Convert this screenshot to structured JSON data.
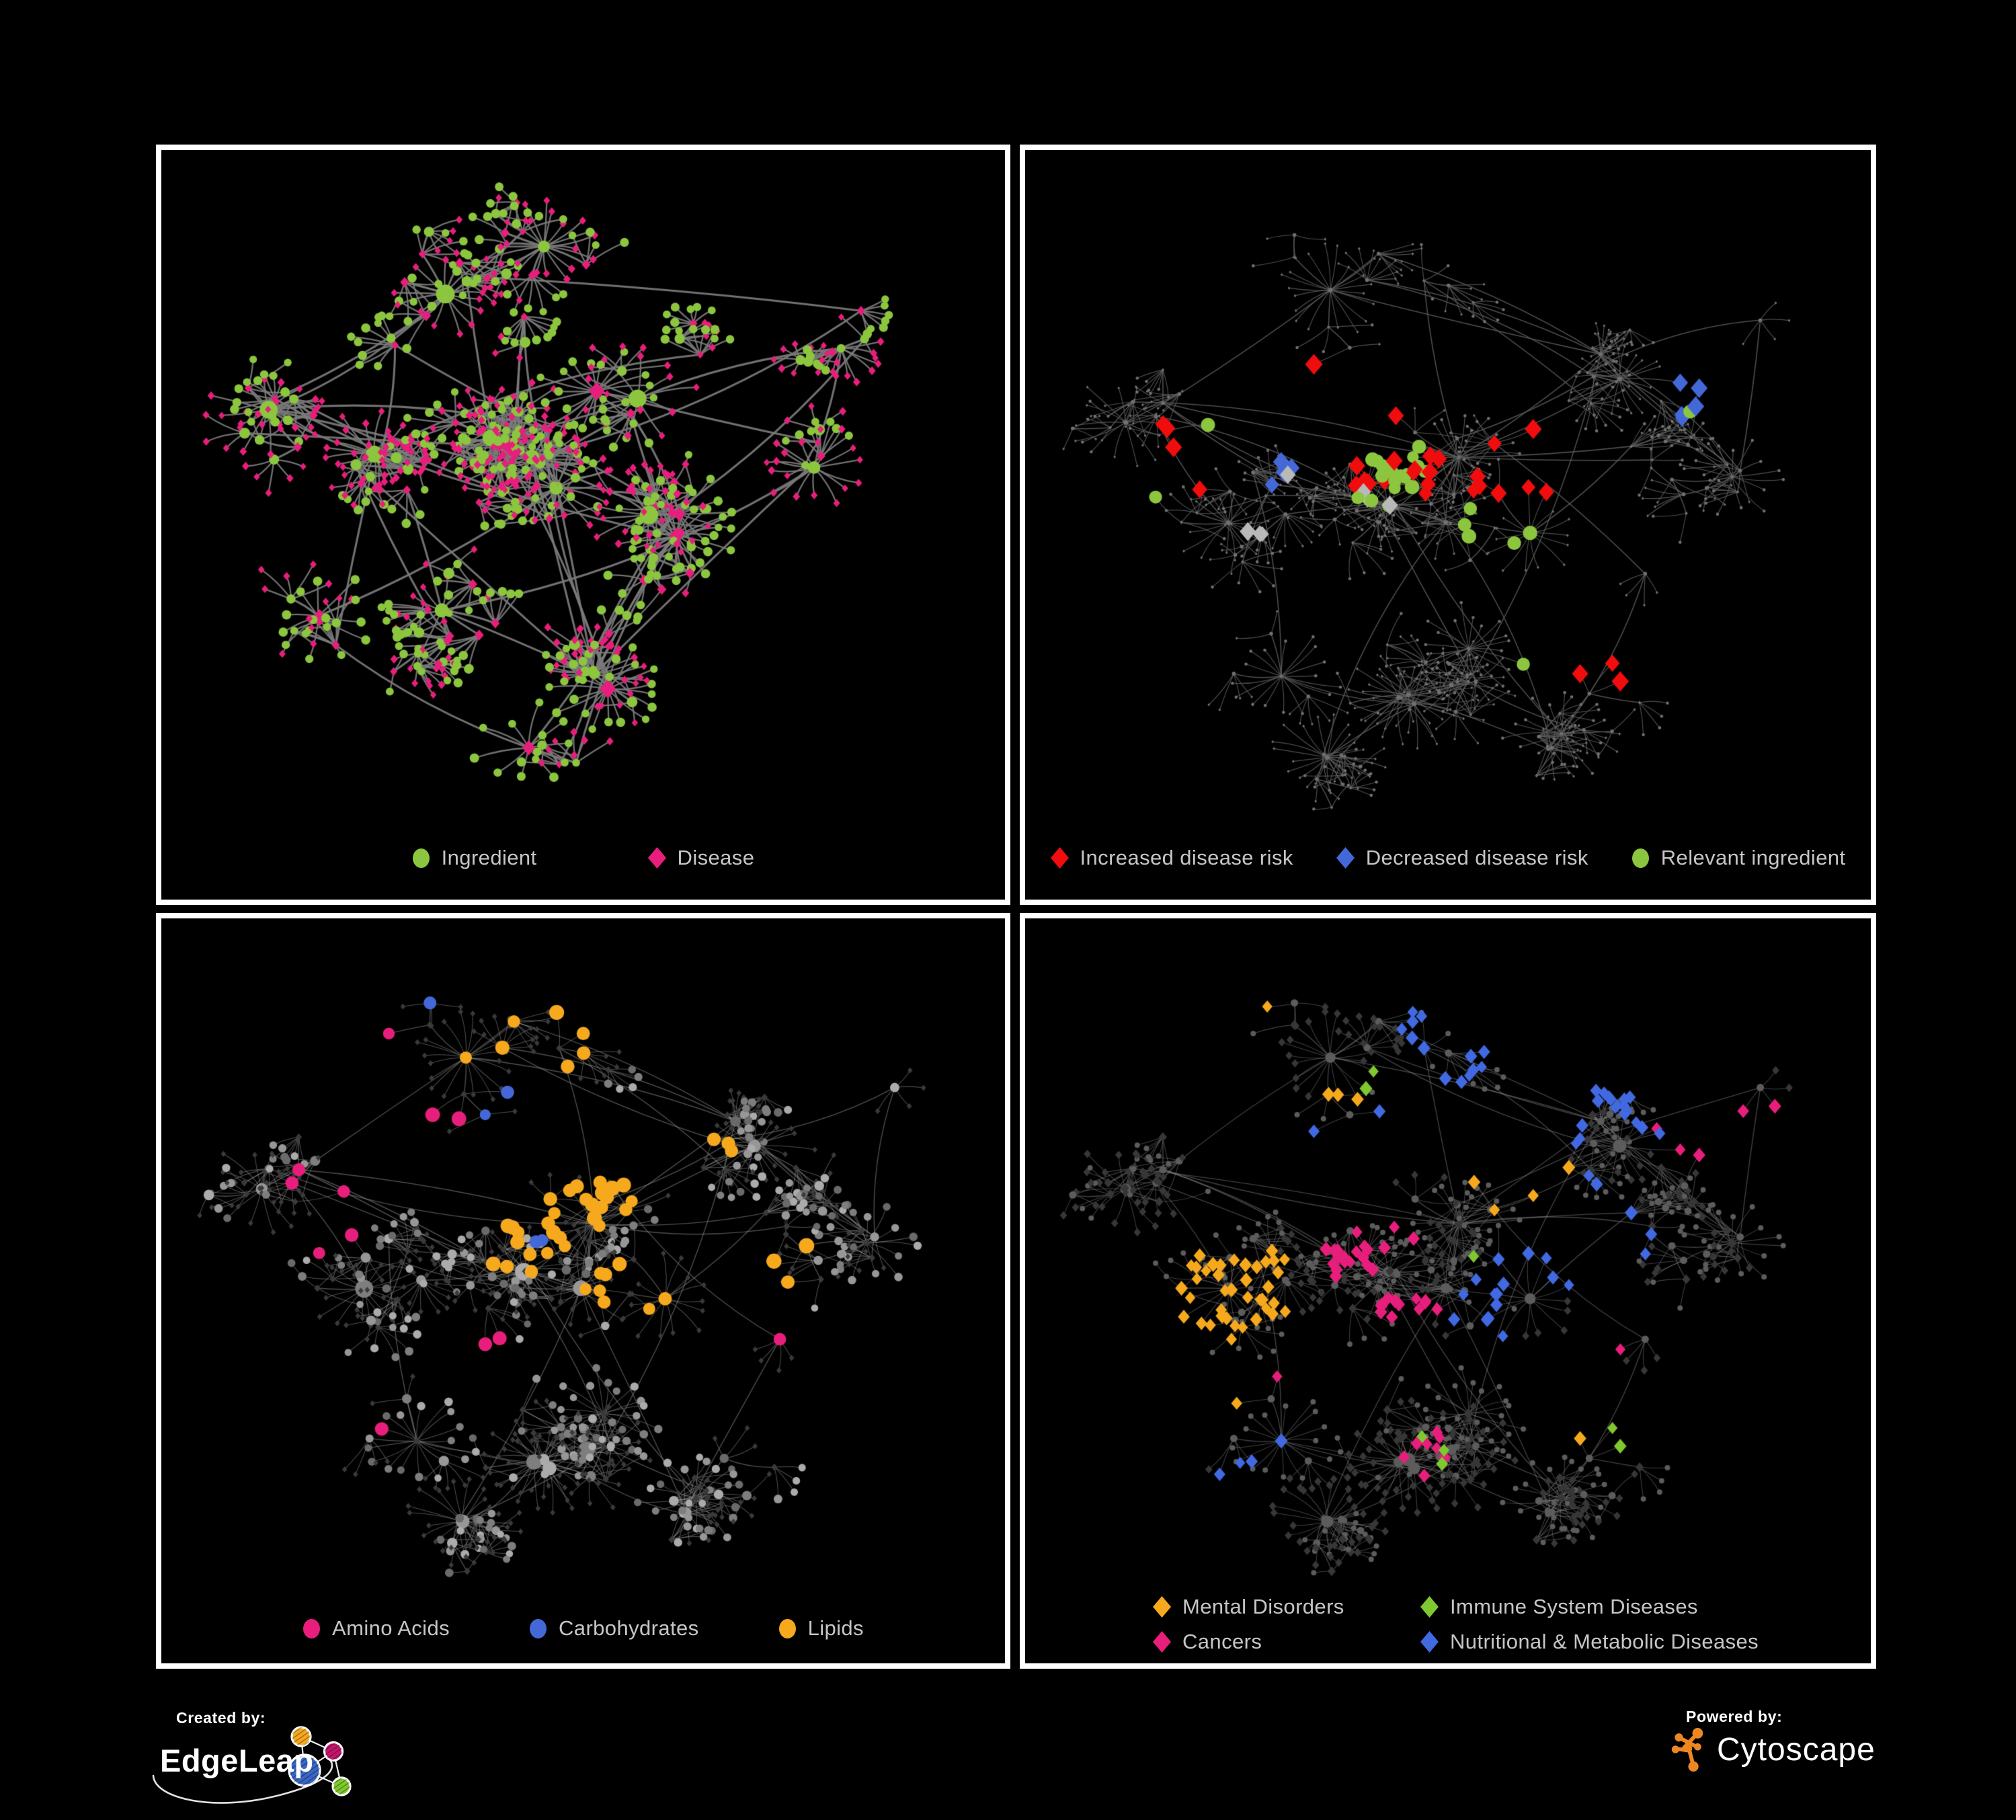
{
  "page": {
    "background": "#000000",
    "panel_border": "#FFFFFF",
    "legend_text_color": "#C6C6C6"
  },
  "panels": [
    {
      "key": "ingredient-disease",
      "legend": {
        "items": [
          {
            "label": "Ingredient",
            "shape": "circle",
            "color": "#8CC63E"
          },
          {
            "label": "Disease",
            "shape": "diamond",
            "color": "#E81E7C"
          }
        ]
      },
      "net": {
        "mode": "full",
        "topoSeed": 7,
        "styleSeed": 11,
        "hubCount": 58,
        "hubIngredientProb": 0.6,
        "clusters": [
          [
            0.42,
            0.46,
            0.09,
            5
          ],
          [
            0.26,
            0.47,
            0.06,
            3
          ],
          [
            0.53,
            0.38,
            0.04,
            2.5
          ],
          [
            0.6,
            0.55,
            0.04,
            1.5
          ],
          [
            0.38,
            0.17,
            0.09,
            2
          ],
          [
            0.22,
            0.25,
            0.07,
            1.5
          ],
          [
            0.65,
            0.28,
            0.09,
            2
          ],
          [
            0.84,
            0.28,
            0.06,
            1.5
          ],
          [
            0.52,
            0.8,
            0.07,
            2
          ],
          [
            0.32,
            0.7,
            0.06,
            1.5
          ],
          [
            0.13,
            0.37,
            0.06,
            1.2
          ],
          [
            0.73,
            0.6,
            0.07,
            1.5
          ],
          [
            0.45,
            0.92,
            0.05,
            1
          ],
          [
            0.18,
            0.72,
            0.05,
            1
          ],
          [
            0.8,
            0.45,
            0.05,
            1
          ]
        ],
        "edge": {
          "color": "#7B7B7B",
          "width": 2.3,
          "alpha": 0.92
        },
        "ingredientColor": "#8CC63E",
        "diseaseColor": "#E81E7C"
      }
    },
    {
      "key": "disease-risk",
      "legend": {
        "items": [
          {
            "label": "Increased disease risk",
            "shape": "diamond",
            "color": "#F10D0D"
          },
          {
            "label": "Decreased disease risk",
            "shape": "diamond",
            "color": "#4468D8"
          },
          {
            "label": "Relevant ingredient",
            "shape": "circle",
            "color": "#8CC63E"
          }
        ]
      },
      "net": {
        "mode": "skeleton",
        "topoSeed": 42,
        "styleSeed": 101,
        "hubCount": 60,
        "hubIngredientProb": 0.62,
        "clusters": [
          [
            0.44,
            0.52,
            0.09,
            5
          ],
          [
            0.27,
            0.52,
            0.06,
            3
          ],
          [
            0.53,
            0.43,
            0.045,
            2.5
          ],
          [
            0.2,
            0.62,
            0.05,
            2
          ],
          [
            0.42,
            0.2,
            0.1,
            2
          ],
          [
            0.66,
            0.33,
            0.1,
            2
          ],
          [
            0.85,
            0.25,
            0.06,
            1.2
          ],
          [
            0.5,
            0.82,
            0.07,
            1.6
          ],
          [
            0.3,
            0.76,
            0.06,
            1.5
          ],
          [
            0.13,
            0.38,
            0.06,
            1.2
          ],
          [
            0.74,
            0.62,
            0.07,
            1.5
          ],
          [
            0.59,
            0.6,
            0.04,
            1.5
          ],
          [
            0.87,
            0.47,
            0.05,
            1
          ],
          [
            0.36,
            0.9,
            0.05,
            1
          ],
          [
            0.64,
            0.88,
            0.05,
            1
          ],
          [
            0.55,
            0.72,
            0.04,
            1.5
          ],
          [
            0.75,
            0.45,
            0.05,
            1.2
          ]
        ],
        "edge": {
          "color": "#5C5C5C",
          "width": 1.15,
          "alpha": 0.85
        },
        "baseColor": "#707070",
        "highlights": [
          {
            "name": "increased-risk",
            "color": "#F10D0D",
            "shape": "diamond",
            "target": "D",
            "size": 13.5,
            "count": 33,
            "zones": [
              [
                0.44,
                0.47,
                0.07,
                5
              ],
              [
                0.22,
                0.43,
                0.04,
                2
              ],
              [
                0.58,
                0.5,
                0.05,
                1.5
              ],
              [
                0.7,
                0.74,
                0.03,
                1
              ],
              [
                0.3,
                0.33,
                0.012,
                0.5
              ],
              [
                0.6,
                0.41,
                0.012,
                0.5
              ]
            ]
          },
          {
            "name": "decreased-risk",
            "color": "#4468D8",
            "shape": "diamond",
            "target": "D",
            "size": 13.5,
            "count": 9,
            "zones": [
              [
                0.24,
                0.46,
                0.04,
                3
              ],
              [
                0.795,
                0.36,
                0.012,
                1
              ]
            ]
          },
          {
            "name": "other-risk",
            "color": "#B9B9B9",
            "shape": "diamond",
            "target": "D",
            "size": 12.5,
            "count": 8,
            "zones": [
              [
                0.24,
                0.44,
                0.05,
                1
              ],
              [
                0.42,
                0.52,
                0.1,
                1
              ],
              [
                0.255,
                0.56,
                0.01,
                0.4
              ]
            ]
          },
          {
            "name": "relevant-ingredient",
            "color": "#8CC63E",
            "shape": "circle",
            "target": "I",
            "size": 9.5,
            "count": 27,
            "zones": [
              [
                0.43,
                0.48,
                0.06,
                4
              ],
              [
                0.22,
                0.42,
                0.05,
                1.5
              ],
              [
                0.57,
                0.56,
                0.04,
                1.2
              ],
              [
                0.67,
                0.75,
                0.035,
                1
              ],
              [
                0.795,
                0.38,
                0.01,
                0.4
              ],
              [
                0.48,
                0.8,
                0.01,
                0.4
              ],
              [
                0.12,
                0.5,
                0.008,
                0.3
              ]
            ]
          }
        ]
      }
    },
    {
      "key": "ingredient-classes",
      "legend": {
        "items": [
          {
            "label": "Amino Acids",
            "shape": "circle",
            "color": "#E81E7C"
          },
          {
            "label": "Carbohydrates",
            "shape": "circle",
            "color": "#4468D8"
          },
          {
            "label": "Lipids",
            "shape": "circle",
            "color": "#F6A91D"
          }
        ]
      },
      "net": {
        "mode": "classes-ingredient",
        "topoSeed": 42,
        "styleSeed": 202,
        "edge": {
          "color": "#999999",
          "width": 1.05,
          "alpha": 0.5
        },
        "circleGrays": [
          "#ABABAB",
          "#979797",
          "#7E7E7E",
          "#6A6A6A"
        ],
        "diamondColor": "#3A3A3A",
        "highlights": [
          {
            "name": "lipids",
            "color": "#F6A91D",
            "shape": "circle",
            "target": "I",
            "size": 10,
            "count": 58,
            "zones": [
              [
                0.475,
                0.4,
                0.04,
                4
              ],
              [
                0.44,
                0.18,
                0.05,
                1.5
              ],
              [
                0.43,
                0.5,
                0.05,
                1.5
              ],
              [
                0.555,
                0.56,
                0.025,
                1
              ],
              [
                0.65,
                0.55,
                0.03,
                1
              ],
              [
                0.3,
                0.63,
                0.012,
                0.4
              ],
              [
                0.66,
                0.35,
                0.012,
                0.4
              ],
              [
                0.72,
                0.51,
                0.01,
                0.4
              ]
            ]
          },
          {
            "name": "carbohydrates",
            "color": "#4468D8",
            "shape": "circle",
            "target": "I",
            "size": 9,
            "count": 14,
            "zones": [
              [
                0.475,
                0.4,
                0.03,
                3
              ],
              [
                0.285,
                0.06,
                0.008,
                0.5
              ],
              [
                0.065,
                0.245,
                0.008,
                0.5
              ],
              [
                0.41,
                0.29,
                0.012,
                0.6
              ],
              [
                0.675,
                0.56,
                0.008,
                0.5
              ]
            ]
          },
          {
            "name": "amino-acids",
            "color": "#E81E7C",
            "shape": "circle",
            "target": "I",
            "size": 9.5,
            "count": 18,
            "zones": [
              [
                0.215,
                0.18,
                0.03,
                1
              ],
              [
                0.3,
                0.25,
                0.02,
                0.7
              ],
              [
                0.18,
                0.45,
                0.04,
                1
              ],
              [
                0.265,
                0.77,
                0.02,
                0.8
              ],
              [
                0.4,
                0.645,
                0.04,
                1
              ],
              [
                0.7,
                0.68,
                0.04,
                1.3
              ],
              [
                0.78,
                0.265,
                0.01,
                0.4
              ],
              [
                0.93,
                0.28,
                0.008,
                0.3
              ],
              [
                0.65,
                0.03,
                0.008,
                0.3
              ]
            ]
          }
        ]
      }
    },
    {
      "key": "disease-classes",
      "legend": {
        "items": [
          {
            "label": "Mental Disorders",
            "shape": "diamond",
            "color": "#F6A91D"
          },
          {
            "label": "Immune System Diseases",
            "shape": "diamond",
            "color": "#7FC82F"
          },
          {
            "label": "Cancers",
            "shape": "diamond",
            "color": "#E81E7C"
          },
          {
            "label": "Nutritional & Metabolic Diseases",
            "shape": "diamond",
            "color": "#4169E1"
          }
        ]
      },
      "net": {
        "mode": "classes-disease",
        "topoSeed": 42,
        "styleSeed": 303,
        "edge": {
          "color": "#999999",
          "width": 1.05,
          "alpha": 0.42
        },
        "circleColor": "#5C5C5C",
        "diamondColor": "#373737",
        "highlights": [
          {
            "name": "mental-disorders",
            "color": "#F6A91D",
            "shape": "diamond",
            "target": "D",
            "size": 10,
            "count": 70,
            "zones": [
              [
                0.21,
                0.56,
                0.048,
                6
              ],
              [
                0.27,
                0.12,
                0.01,
                0.4
              ],
              [
                0.37,
                0.25,
                0.012,
                0.5
              ],
              [
                0.6,
                0.41,
                0.008,
                0.4
              ],
              [
                0.19,
                0.7,
                0.025,
                0.8
              ],
              [
                0.65,
                0.78,
                0.008,
                0.3
              ]
            ]
          },
          {
            "name": "cancers",
            "color": "#E81E7C",
            "shape": "diamond",
            "target": "D",
            "size": 10,
            "count": 52,
            "zones": [
              [
                0.39,
                0.5,
                0.05,
                4
              ],
              [
                0.44,
                0.58,
                0.04,
                2
              ],
              [
                0.84,
                0.28,
                0.025,
                1
              ],
              [
                0.48,
                0.8,
                0.035,
                1
              ],
              [
                0.73,
                0.61,
                0.008,
                0.3
              ],
              [
                0.21,
                0.12,
                0.008,
                0.3
              ],
              [
                0.3,
                0.67,
                0.02,
                0.6
              ]
            ]
          },
          {
            "name": "nutritional-metabolic",
            "color": "#4169E1",
            "shape": "diamond",
            "target": "D",
            "size": 10,
            "count": 72,
            "zones": [
              [
                0.56,
                0.57,
                0.035,
                2.5
              ],
              [
                0.75,
                0.25,
                0.05,
                1.5
              ],
              [
                0.67,
                0.47,
                0.035,
                1.5
              ],
              [
                0.5,
                0.12,
                0.05,
                1.2
              ],
              [
                0.17,
                0.13,
                0.04,
                1
              ],
              [
                0.545,
                0.18,
                0.02,
                0.7
              ],
              [
                0.25,
                0.82,
                0.035,
                0.8
              ],
              [
                0.36,
                0.33,
                0.03,
                0.7
              ],
              [
                0.64,
                0.31,
                0.01,
                0.4
              ],
              [
                0.83,
                0.55,
                0.02,
                0.5
              ]
            ]
          },
          {
            "name": "immune-system",
            "color": "#7FC82F",
            "shape": "diamond",
            "target": "D",
            "size": 10,
            "count": 12,
            "zones": [
              [
                0.36,
                0.45,
                0.04,
                1
              ],
              [
                0.42,
                0.26,
                0.04,
                0.8
              ],
              [
                0.55,
                0.54,
                0.01,
                0.3
              ],
              [
                0.23,
                0.71,
                0.01,
                0.3
              ],
              [
                0.48,
                0.81,
                0.01,
                0.3
              ],
              [
                0.7,
                0.75,
                0.012,
                0.4
              ]
            ]
          }
        ]
      }
    }
  ],
  "footer": {
    "created_by": {
      "label": "Created by:",
      "brand": "EdgeLeap",
      "logo_colors": {
        "orange": "#F6A91D",
        "magenta": "#C2166B",
        "blue": "#3A66C4",
        "green": "#7FC92C"
      }
    },
    "powered_by": {
      "label": "Powered by:",
      "brand": "Cytoscape",
      "logo_color": "#EE8722"
    }
  }
}
